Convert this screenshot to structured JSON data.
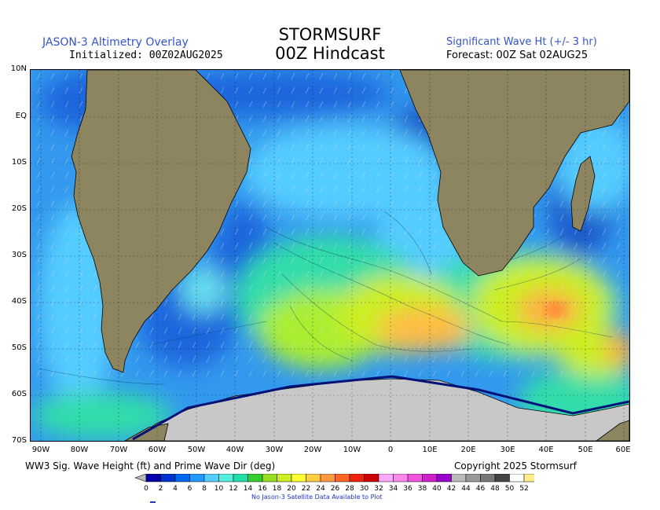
{
  "header": {
    "left_title": "JASON-3 Altimetry Overlay",
    "left_sub": "Initialized: 00Z02AUG2025",
    "title_line1": "STORMSURF",
    "title_line2": "00Z Hindcast",
    "right_title": "Significant Wave Ht (+/- 3 hr)",
    "right_sub": "Forecast: 00Z Sat 02AUG25"
  },
  "map": {
    "lat_labels": [
      "10N",
      "EQ",
      "10S",
      "20S",
      "30S",
      "40S",
      "50S",
      "60S",
      "70S"
    ],
    "lon_labels": [
      "90W",
      "80W",
      "70W",
      "60W",
      "50W",
      "40W",
      "30W",
      "20W",
      "10W",
      "0",
      "10E",
      "20E",
      "30E",
      "40E",
      "50E",
      "60E"
    ]
  },
  "footer": {
    "left": "WW3 Sig. Wave Height (ft) and Prime Wave Dir (deg)",
    "right": "Copyright 2025 Stormsurf",
    "note": "No Jason-3 Satellite Data Available to Plot"
  },
  "legend": {
    "ticks": [
      "0",
      "2",
      "4",
      "6",
      "8",
      "10",
      "12",
      "14",
      "16",
      "18",
      "20",
      "22",
      "24",
      "26",
      "28",
      "30",
      "32",
      "34",
      "36",
      "38",
      "40",
      "42",
      "44",
      "46",
      "48",
      "50",
      "52"
    ],
    "colors": [
      "#0000aa",
      "#0033cc",
      "#0066ee",
      "#2299ff",
      "#55ccff",
      "#55eedd",
      "#22ddaa",
      "#33cc33",
      "#99dd22",
      "#ccee22",
      "#ffff33",
      "#ffcc44",
      "#ff9944",
      "#ff6622",
      "#ee2211",
      "#cc0000",
      "#ffaaff",
      "#ff88ee",
      "#ee55dd",
      "#cc22cc",
      "#9900cc",
      "#bbbbbb",
      "#999999",
      "#777777",
      "#444444",
      "#ffffff",
      "#ffee88"
    ]
  },
  "colors": {
    "land": "#8c8560",
    "ice": "#c8c8c8",
    "ocean_base": "#44aaff"
  }
}
